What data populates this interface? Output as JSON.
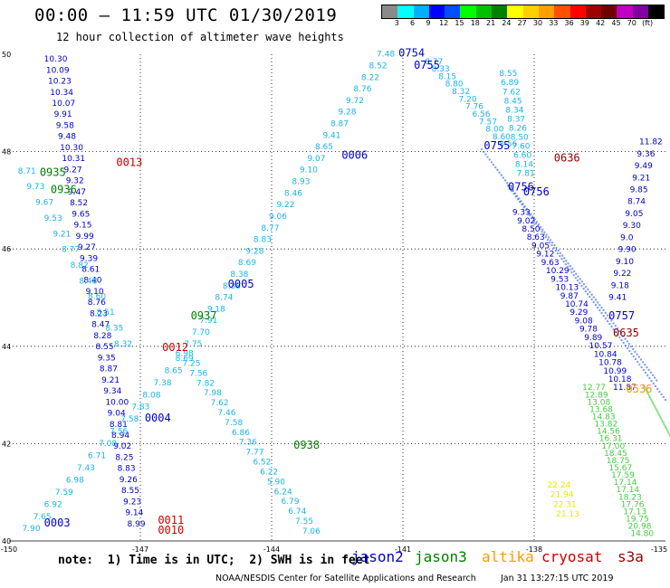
{
  "title": "00:00 – 11:59 UTC 01/30/2019",
  "subtitle": "12 hour collection of altimeter wave heights",
  "colorbar": {
    "colors": [
      "#8a8a8a",
      "#00ffff",
      "#00b0ff",
      "#0000ff",
      "#0050ff",
      "#00ff00",
      "#00c000",
      "#008000",
      "#ffff00",
      "#ffd000",
      "#ffa000",
      "#ff5000",
      "#ff0000",
      "#a00000",
      "#700000",
      "#c000c0",
      "#8000a0",
      "#000000"
    ],
    "labels": [
      "3",
      "6",
      "9",
      "12",
      "15",
      "18",
      "21",
      "24",
      "27",
      "30",
      "33",
      "36",
      "39",
      "42",
      "45",
      "70",
      "(ft)"
    ]
  },
  "axes": {
    "lat_labels": [
      "50",
      "48",
      "46",
      "44",
      "42",
      "40"
    ],
    "lon_labels": [
      "-150",
      "-147",
      "-144",
      "-141",
      "-138",
      "-135"
    ]
  },
  "note": "note:  1) Time is in UTC;  2) SWH is in feet",
  "legend": [
    {
      "name": "jason2",
      "color": "#0000cc"
    },
    {
      "name": "jason3",
      "color": "#008000"
    },
    {
      "name": "altika",
      "color": "#ff9900"
    },
    {
      "name": "cryosat",
      "color": "#cc0000"
    },
    {
      "name": "s3a",
      "color": "#990000"
    }
  ],
  "credit": "NOAA/NESDIS Center for Satellite Applications and Research",
  "timestamp": "Jan 31 13:27:15 UTC 2019",
  "track_labels": [
    {
      "text": "0754",
      "color": "#0000cc",
      "lon": -141.1,
      "lat": 49.95
    },
    {
      "text": "0755",
      "color": "#0000cc",
      "lon": -140.75,
      "lat": 49.7
    },
    {
      "text": "0755",
      "color": "#0000cc",
      "lon": -139.15,
      "lat": 48.05
    },
    {
      "text": "0756",
      "color": "#0000cc",
      "lon": -138.6,
      "lat": 47.2
    },
    {
      "text": "0756",
      "color": "#0000cc",
      "lon": -138.25,
      "lat": 47.1
    },
    {
      "text": "0757",
      "color": "#0000cc",
      "lon": -136.3,
      "lat": 44.55
    },
    {
      "text": "0006",
      "color": "#0000cc",
      "lon": -142.4,
      "lat": 47.85
    },
    {
      "text": "0005",
      "color": "#0000cc",
      "lon": -145.0,
      "lat": 45.2
    },
    {
      "text": "0004",
      "color": "#0000cc",
      "lon": -146.9,
      "lat": 42.45
    },
    {
      "text": "0003",
      "color": "#0000cc",
      "lon": -149.2,
      "lat": 40.3
    },
    {
      "text": "0013",
      "color": "#cc0000",
      "lon": -147.55,
      "lat": 47.7
    },
    {
      "text": "0012",
      "color": "#cc0000",
      "lon": -146.5,
      "lat": 43.9
    },
    {
      "text": "0011",
      "color": "#cc0000",
      "lon": -146.6,
      "lat": 40.35
    },
    {
      "text": "0010",
      "color": "#cc0000",
      "lon": -146.6,
      "lat": 40.15
    },
    {
      "text": "0636",
      "color": "#990000",
      "lon": -137.55,
      "lat": 47.8
    },
    {
      "text": "0635",
      "color": "#990000",
      "lon": -136.2,
      "lat": 44.2
    },
    {
      "text": "0935",
      "color": "#008000",
      "lon": -149.3,
      "lat": 47.5
    },
    {
      "text": "0936",
      "color": "#008000",
      "lon": -149.05,
      "lat": 47.15
    },
    {
      "text": "0937",
      "color": "#008000",
      "lon": -145.85,
      "lat": 44.55
    },
    {
      "text": "0938",
      "color": "#008000",
      "lon": -143.5,
      "lat": 41.9
    },
    {
      "text": "0536",
      "color": "#ff9900",
      "lon": -135.9,
      "lat": 43.05
    }
  ],
  "tracks": [
    {
      "name": "jason2-desc-left",
      "color": "#0000cc",
      "values": [
        "10.30",
        "10.09",
        "10.23",
        "10.34",
        "10.07",
        "9.91",
        "9.58",
        "9.48",
        "10.30",
        "10.31",
        "9.27",
        "9.32",
        "9.47",
        "8.52",
        "9.65",
        "9.15",
        "9.99",
        "9.27",
        "9.39",
        "8.61",
        "8.40",
        "9.10",
        "8.76",
        "8.23",
        "8.47",
        "8.28",
        "8.55",
        "9.35",
        "8.87",
        "9.21",
        "9.34",
        "10.00",
        "9.04",
        "8.81",
        "8.94",
        "9.02",
        "8.25",
        "8.83",
        "9.26",
        "8.55",
        "9.23",
        "9.14",
        "8.99"
      ]
    }
  ],
  "swh_values": {
    "cyan": [
      "7.48",
      "8.52",
      "8.22",
      "8.76",
      "9.72",
      "9.28",
      "8.87",
      "9.41",
      "8.65",
      "9.07",
      "9.10",
      "8.93",
      "8.46",
      "9.22",
      "9.06",
      "8.77",
      "8.83",
      "9.28",
      "8.69",
      "8.38",
      "8.38",
      "8.74",
      "9.18",
      "7.91",
      "7.70",
      "7.75",
      "6.98",
      "7.25",
      "7.56",
      "7.82",
      "7.98",
      "7.62",
      "7.46",
      "7.58",
      "6.86",
      "7.36",
      "7.77",
      "6.52",
      "6.22",
      "5.90",
      "6.24",
      "6.79",
      "6.74",
      "7.55",
      "7.06",
      "7.75",
      "7.73",
      "8.38",
      "8.72",
      "7.79",
      "8.69",
      "7.16",
      "7.38",
      "7.96",
      "8.33",
      "8.54",
      "8.77",
      "8.33",
      "8.15",
      "8.80",
      "8.32",
      "7.20",
      "7.76",
      "6.56",
      "7.57",
      "8.00",
      "8.60",
      "8.56",
      "8.55",
      "6.89",
      "7.62",
      "8.45",
      "8.34",
      "8.37",
      "8.26",
      "8.50",
      "7.60",
      "6.60",
      "8.14",
      "7.81",
      "8.69",
      "8.65",
      "7.38",
      "8.08",
      "7.83",
      "7.58",
      "7.56",
      "7.08",
      "6.71",
      "7.43",
      "6.98",
      "7.59",
      "6.92",
      "7.65",
      "7.90",
      "8.71",
      "9.73",
      "9.67",
      "9.53",
      "9.21",
      "8.77",
      "8.82",
      "8.48",
      "8.60",
      "8.51",
      "8.35",
      "8.32"
    ],
    "blue": [
      "9.33",
      "9.02",
      "8.50",
      "8.63",
      "9.05",
      "9.12",
      "9.63",
      "10.29",
      "9.53",
      "10.13",
      "9.87",
      "10.74",
      "9.29",
      "9.08",
      "9.78",
      "9.89",
      "10.57",
      "10.84",
      "10.78",
      "10.99",
      "10.18",
      "11.87",
      "11.82",
      "9.36",
      "9.49",
      "9.21",
      "9.85",
      "8.74",
      "9.05",
      "9.30",
      "9.0",
      "9.90",
      "9.10",
      "9.22",
      "9.18",
      "9.41"
    ],
    "green": [
      "12.77",
      "12.89",
      "13.08",
      "13.68",
      "14.83",
      "13.82",
      "14.56",
      "16.31",
      "17.00",
      "18.45",
      "18.75",
      "15.67",
      "17.59",
      "17.14",
      "17.14",
      "18.23",
      "17.76",
      "17.13",
      "19.75",
      "20.98",
      "14.80"
    ],
    "yellow": [
      "22.24",
      "21.94",
      "22.31",
      "21.13"
    ]
  }
}
